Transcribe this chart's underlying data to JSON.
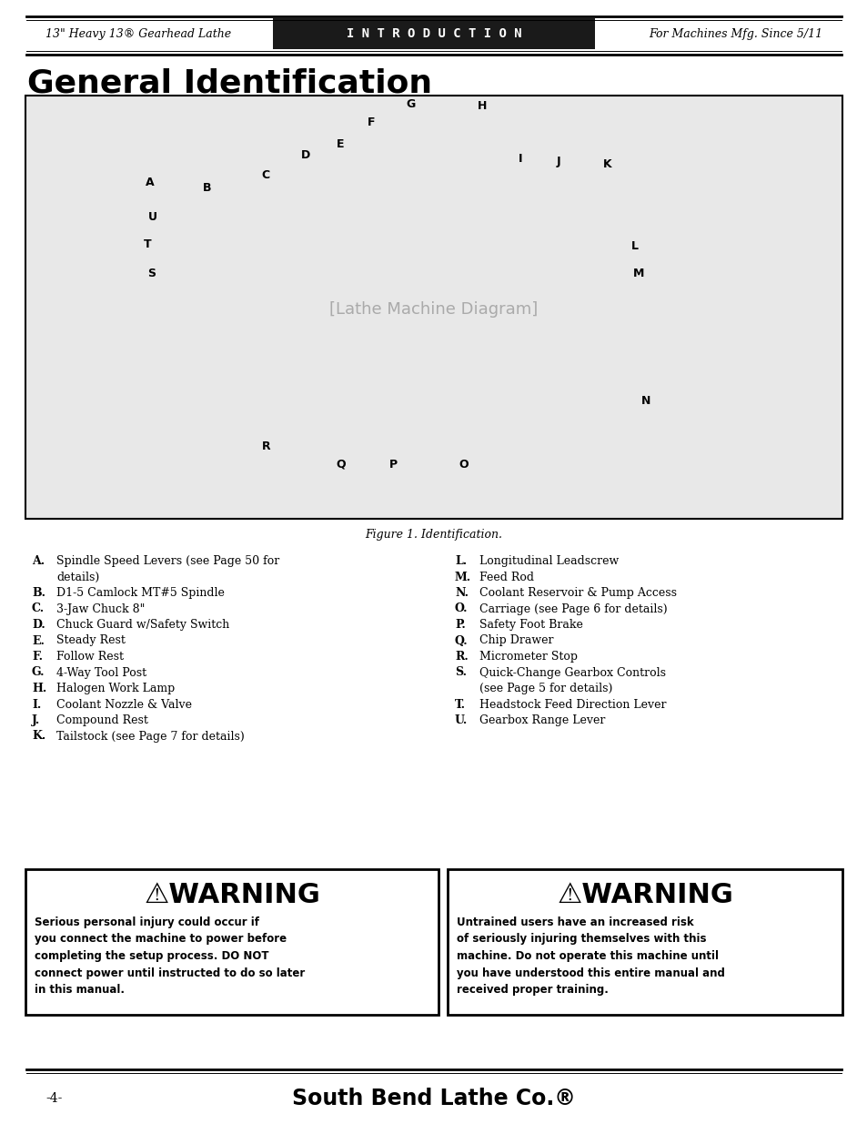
{
  "page_bg": "#ffffff",
  "header_bg": "#1a1a1a",
  "header_text": "I N T R O D U C T I O N",
  "header_left": "13\" Heavy 13® Gearhead Lathe",
  "header_right": "For Machines Mfg. Since 5/11",
  "title": "General Identification",
  "figure_caption": "Figure 1. Identification.",
  "warning1_body": "Serious personal injury could occur if\nyou connect the machine to power before\ncompleting the setup process. DO NOT\nconnect power until instructed to do so later\nin this manual.",
  "warning2_body": "Untrained users have an increased risk\nof seriously injuring themselves with this\nmachine. Do not operate this machine until\nyou have understood this entire manual and\nreceived proper training.",
  "footer_page": "-4-",
  "footer_brand": "South Bend Lathe Co.®"
}
